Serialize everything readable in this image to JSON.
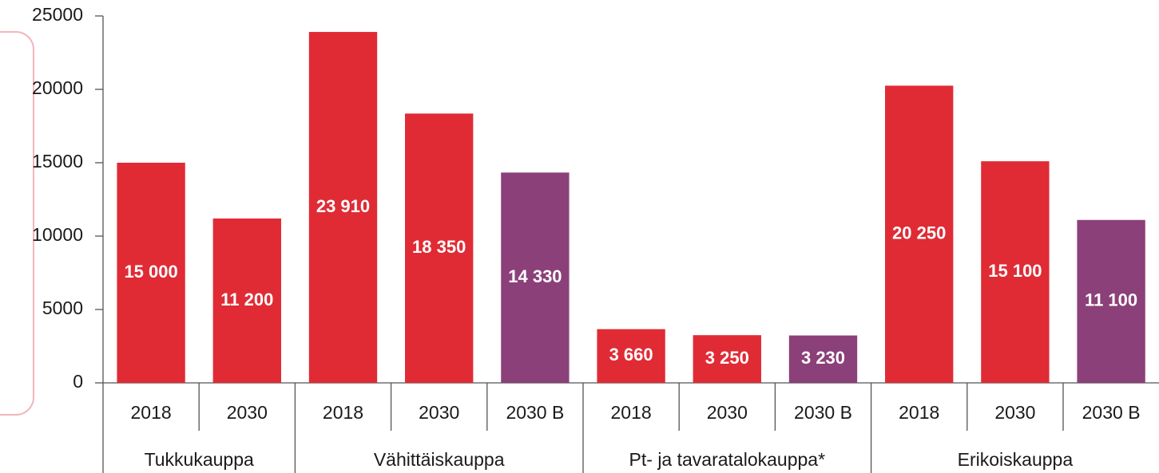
{
  "chart_data": {
    "type": "bar",
    "groups": [
      {
        "name": "Tukkukauppa",
        "categories": [
          "2018",
          "2030"
        ],
        "values": [
          15000,
          11200
        ],
        "value_labels": [
          "15 000",
          "11 200"
        ],
        "colors": [
          "#e02b35",
          "#e02b35"
        ]
      },
      {
        "name": "Vähittäiskauppa",
        "categories": [
          "2018",
          "2030",
          "2030 B"
        ],
        "values": [
          23910,
          18350,
          14330
        ],
        "value_labels": [
          "23 910",
          "18 350",
          "14 330"
        ],
        "colors": [
          "#e02b35",
          "#e02b35",
          "#8b4079"
        ]
      },
      {
        "name": "Pt- ja tavaratalokauppa*",
        "categories": [
          "2018",
          "2030",
          "2030 B"
        ],
        "values": [
          3660,
          3250,
          3230
        ],
        "value_labels": [
          "3 660",
          "3 250",
          "3 230"
        ],
        "colors": [
          "#e02b35",
          "#e02b35",
          "#8b4079"
        ]
      },
      {
        "name": "Erikoiskauppa",
        "categories": [
          "2018",
          "2030",
          "2030 B"
        ],
        "values": [
          20250,
          15100,
          11100
        ],
        "value_labels": [
          "20 250",
          "15 100",
          "11 100"
        ],
        "colors": [
          "#e02b35",
          "#e02b35",
          "#8b4079"
        ]
      }
    ],
    "ylim": [
      0,
      25000
    ],
    "yticks": [
      0,
      5000,
      10000,
      15000,
      20000,
      25000
    ],
    "grid": false
  }
}
